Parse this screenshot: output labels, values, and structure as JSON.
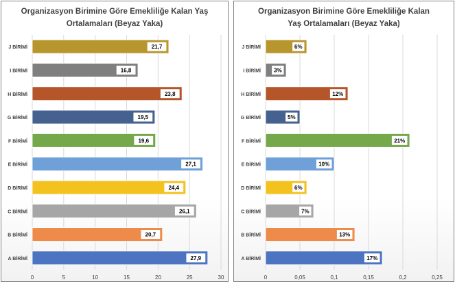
{
  "chart_data": [
    {
      "type": "bar",
      "orientation": "horizontal",
      "title_lines": [
        "Organizasyon Birimine Göre Emekliliğe Kalan Yaş",
        "Ortalamaları (Beyaz Yaka)"
      ],
      "categories": [
        "J BİRİMİ",
        "I BİRİMİ",
        "H BİRİMİ",
        "G BİRİMİ",
        "F BİRİMİ",
        "E BİRİMİ",
        "D BİRİMİ",
        "C BİRİMİ",
        "B BİRİMİ",
        "A BİRİMİ"
      ],
      "values": [
        21.7,
        16.8,
        23.8,
        19.5,
        19.6,
        27.1,
        24.4,
        26.1,
        20.7,
        27.9
      ],
      "data_labels": [
        "21,7",
        "16,8",
        "23,8",
        "19,5",
        "19,6",
        "27,1",
        "24,4",
        "26,1",
        "20,7",
        "27,9"
      ],
      "xlim": [
        0,
        30
      ],
      "x_ticks": [
        "0",
        "5",
        "10",
        "15",
        "20",
        "25",
        "30"
      ],
      "grid": true
    },
    {
      "type": "bar",
      "orientation": "horizontal",
      "title_lines": [
        "Organizasyon Birimine  Göre Emekliliğe Kalan",
        "Yaş Ortalamaları (Beyaz Yaka)"
      ],
      "categories": [
        "J BİRİMİ",
        "I BİRİMİ",
        "H BİRİMİ",
        "G BİRİMİ",
        "F BİRİMİ",
        "E BİRİMİ",
        "D BİRİMİ",
        "C BİRİMİ",
        "B BİRİMİ",
        "A BİRİMİ"
      ],
      "values": [
        0.06,
        0.03,
        0.12,
        0.05,
        0.21,
        0.1,
        0.06,
        0.07,
        0.13,
        0.17
      ],
      "data_labels": [
        "6%",
        "3%",
        "12%",
        "5%",
        "21%",
        "10%",
        "6%",
        "7%",
        "13%",
        "17%"
      ],
      "xlim": [
        0,
        0.25
      ],
      "x_ticks": [
        "0",
        "0,05",
        "0,1",
        "0,15",
        "0,2",
        "0,25"
      ],
      "grid": true
    }
  ],
  "colors": {
    "bars": [
      "#b8962e",
      "#7f7f7f",
      "#b5562a",
      "#44618f",
      "#74a84a",
      "#6fa0d8",
      "#f3c21f",
      "#a6a6a6",
      "#ee8a4a",
      "#4d74c0"
    ],
    "grid": "#d9d9d9",
    "text": "#404040",
    "label_border": "#ffffff"
  }
}
